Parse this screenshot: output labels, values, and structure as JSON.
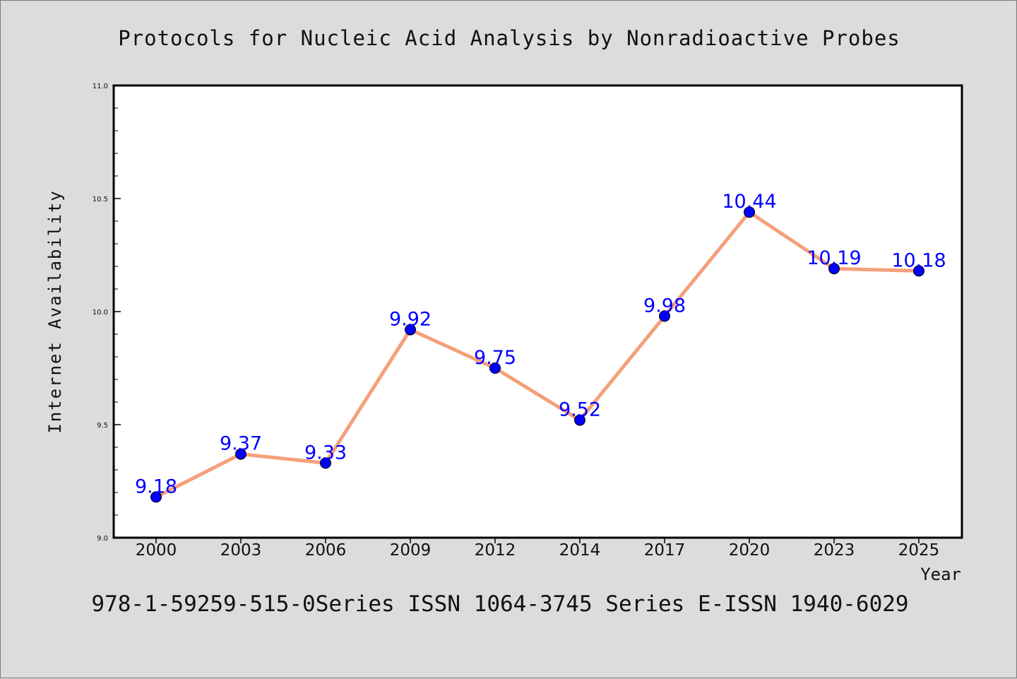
{
  "chart_data": {
    "type": "line",
    "title": "Protocols for Nucleic Acid Analysis by Nonradioactive Probes",
    "xlabel": "Year",
    "ylabel": "Internet Availability",
    "categories": [
      "2000",
      "2003",
      "2006",
      "2009",
      "2012",
      "2014",
      "2017",
      "2020",
      "2023",
      "2025"
    ],
    "series": [
      {
        "values": [
          9.18,
          9.37,
          9.33,
          9.92,
          9.75,
          9.52,
          9.98,
          10.44,
          10.19,
          10.18
        ],
        "line_color": "#f4a07a",
        "marker_color": "#0000ff"
      }
    ],
    "data_labels": [
      "9.18",
      "9.37",
      "9.33",
      "9.92",
      "9.75",
      "9.52",
      "9.98",
      "10.44",
      "10.19",
      "10.18"
    ],
    "ylim": [
      9.0,
      11.0
    ],
    "yticks": [
      "9.0",
      "9.5",
      "10.0",
      "10.5",
      "11.0"
    ],
    "grid": false,
    "footer": "978-1-59259-515-0Series ISSN 1064-3745 Series E-ISSN 1940-6029"
  }
}
